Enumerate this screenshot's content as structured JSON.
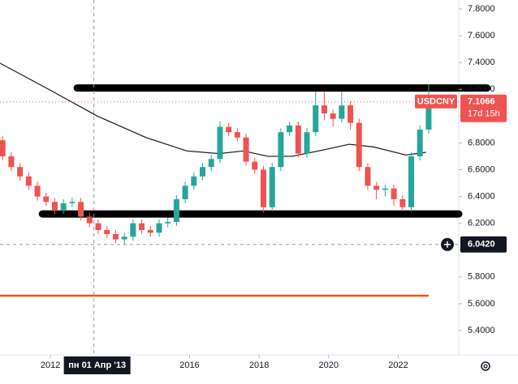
{
  "chart_data": {
    "type": "candlestick",
    "symbol": "USDCNY",
    "x": [
      2010.625,
      2010.875,
      2011.125,
      2011.375,
      2011.625,
      2011.875,
      2012.125,
      2012.375,
      2012.625,
      2012.875,
      2013.125,
      2013.375,
      2013.625,
      2013.875,
      2014.125,
      2014.375,
      2014.625,
      2014.875,
      2015.125,
      2015.375,
      2015.625,
      2015.875,
      2016.125,
      2016.375,
      2016.625,
      2016.875,
      2017.125,
      2017.375,
      2017.625,
      2017.875,
      2018.125,
      2018.375,
      2018.625,
      2018.875,
      2019.125,
      2019.375,
      2019.625,
      2019.875,
      2020.125,
      2020.375,
      2020.625,
      2020.875,
      2021.125,
      2021.375,
      2021.625,
      2021.875,
      2022.125,
      2022.375,
      2022.625,
      2022.875
    ],
    "open": [
      6.82,
      6.7,
      6.62,
      6.55,
      6.48,
      6.4,
      6.36,
      6.3,
      6.35,
      6.36,
      6.25,
      6.2,
      6.15,
      6.12,
      6.08,
      6.1,
      6.2,
      6.15,
      6.13,
      6.2,
      6.21,
      6.38,
      6.48,
      6.55,
      6.62,
      6.68,
      6.92,
      6.88,
      6.84,
      6.66,
      6.6,
      6.32,
      6.62,
      6.88,
      6.93,
      6.72,
      6.88,
      7.08,
      7.02,
      6.98,
      7.08,
      6.95,
      6.62,
      6.48,
      6.45,
      6.46,
      6.38,
      6.32,
      6.7,
      6.9
    ],
    "high": [
      6.85,
      6.73,
      6.65,
      6.58,
      6.51,
      6.43,
      6.39,
      6.38,
      6.39,
      6.39,
      6.28,
      6.23,
      6.18,
      6.15,
      6.13,
      6.23,
      6.23,
      6.18,
      6.23,
      6.24,
      6.41,
      6.51,
      6.58,
      6.65,
      6.71,
      6.96,
      6.95,
      6.91,
      6.87,
      6.69,
      6.63,
      6.65,
      6.91,
      6.96,
      6.96,
      6.91,
      7.18,
      7.18,
      7.05,
      7.18,
      7.11,
      6.98,
      6.65,
      6.51,
      6.49,
      6.49,
      6.41,
      6.73,
      6.93,
      7.24
    ],
    "low": [
      6.67,
      6.59,
      6.52,
      6.45,
      6.37,
      6.33,
      6.27,
      6.27,
      6.32,
      6.22,
      6.17,
      6.12,
      6.09,
      6.05,
      6.04,
      6.07,
      6.12,
      6.1,
      6.1,
      6.17,
      6.18,
      6.35,
      6.45,
      6.52,
      6.59,
      6.65,
      6.85,
      6.81,
      6.63,
      6.57,
      6.28,
      6.29,
      6.59,
      6.85,
      6.69,
      6.69,
      6.85,
      6.97,
      6.92,
      6.95,
      6.9,
      6.59,
      6.45,
      6.38,
      6.4,
      6.33,
      6.29,
      6.29,
      6.67,
      6.87
    ],
    "close": [
      6.7,
      6.62,
      6.55,
      6.48,
      6.4,
      6.36,
      6.3,
      6.35,
      6.36,
      6.25,
      6.2,
      6.15,
      6.12,
      6.08,
      6.1,
      6.2,
      6.15,
      6.13,
      6.2,
      6.21,
      6.38,
      6.48,
      6.55,
      6.62,
      6.68,
      6.92,
      6.88,
      6.84,
      6.66,
      6.6,
      6.32,
      6.62,
      6.88,
      6.93,
      6.72,
      6.88,
      7.08,
      7.02,
      6.98,
      7.08,
      6.95,
      6.62,
      6.48,
      6.45,
      6.46,
      6.38,
      6.32,
      6.7,
      6.9,
      7.11
    ],
    "up_color": "#26a69a",
    "down_color": "#ef5350",
    "xlim": [
      2010.55,
      2023.74
    ],
    "ylim": [
      5.2186,
      7.8665
    ],
    "xticks": [
      2012,
      2016,
      2018,
      2020,
      2022
    ],
    "yticks": [
      {
        "value": 5.4,
        "label": "5.4000"
      },
      {
        "value": 5.6,
        "label": "5.6000"
      },
      {
        "value": 5.8,
        "label": "5.8000"
      },
      {
        "value": 6.0,
        "label": "6.0000"
      },
      {
        "value": 6.2,
        "label": "6.2000"
      },
      {
        "value": 6.4,
        "label": "6.4000"
      },
      {
        "value": 6.6,
        "label": "6.6000"
      },
      {
        "value": 6.8,
        "label": "6.8000"
      },
      {
        "value": 7.0,
        "label": "7.0000"
      },
      {
        "value": 7.2,
        "label": "7.2000"
      },
      {
        "value": 7.4,
        "label": "7.4000"
      },
      {
        "value": 7.6,
        "label": "7.6000"
      },
      {
        "value": 7.8,
        "label": "7.8000"
      }
    ],
    "grid": false,
    "moving_average": {
      "color": "#131722",
      "x": [
        2010.55,
        2011.95,
        2013.35,
        2014.75,
        2015.92,
        2016.85,
        2017.55,
        2018.25,
        2018.95,
        2019.89,
        2020.59,
        2021.29,
        2022.22,
        2022.8
      ],
      "values": [
        7.395,
        7.2,
        7.0,
        6.84,
        6.74,
        6.72,
        6.74,
        6.7,
        6.7,
        6.75,
        6.79,
        6.77,
        6.71,
        6.73
      ]
    },
    "drawn_lines": [
      {
        "color": "#000000",
        "y": 7.21,
        "x": [
          2012.77,
          2024.55
        ]
      },
      {
        "color": "#000000",
        "y": 6.27,
        "x": [
          2011.77,
          2023.74
        ]
      },
      {
        "color": "#f4511e",
        "y": 5.66,
        "x": [
          2010.55,
          2022.85
        ]
      }
    ],
    "last_price": 7.1066,
    "countdown": "17d 15h",
    "crosshair": {
      "x": 2013.25,
      "x_label": "пн 01 Апр '13",
      "y": {
        "value": 6.042,
        "label": "6.0420"
      }
    }
  }
}
